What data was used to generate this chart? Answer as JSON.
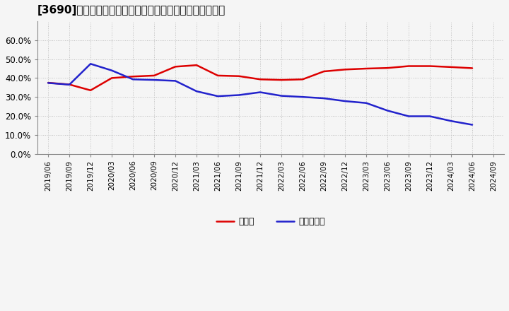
{
  "title": "[3690]　現預金、有利子負債の総資産に対する比率の推移",
  "background_color": "#f5f5f5",
  "plot_background_color": "#f5f5f5",
  "grid_color": "#bbbbbb",
  "ylim": [
    0.0,
    0.7
  ],
  "yticks": [
    0.0,
    0.1,
    0.2,
    0.3,
    0.4,
    0.5,
    0.6
  ],
  "dates": [
    "2019/06",
    "2019/09",
    "2019/12",
    "2020/03",
    "2020/06",
    "2020/09",
    "2020/12",
    "2021/03",
    "2021/06",
    "2021/09",
    "2021/12",
    "2022/03",
    "2022/06",
    "2022/09",
    "2022/12",
    "2023/03",
    "2023/06",
    "2023/09",
    "2023/12",
    "2024/03",
    "2024/06",
    "2024/09"
  ],
  "cash_values": [
    0.375,
    0.366,
    0.335,
    0.4,
    0.408,
    0.413,
    0.46,
    0.468,
    0.413,
    0.41,
    0.393,
    0.39,
    0.393,
    0.435,
    0.445,
    0.45,
    0.453,
    0.463,
    0.463,
    0.458,
    0.452,
    null
  ],
  "debt_values": [
    0.374,
    0.365,
    0.475,
    0.44,
    0.393,
    0.39,
    0.385,
    0.33,
    0.304,
    0.31,
    0.325,
    0.306,
    0.3,
    0.293,
    0.278,
    0.268,
    0.228,
    0.198,
    0.198,
    0.173,
    0.153,
    null
  ],
  "cash_color": "#dd0000",
  "debt_color": "#2222cc",
  "legend_cash": "現預金",
  "legend_debt": "有利子負債",
  "line_width": 1.8,
  "title_fontsize": 11,
  "tick_fontsize": 7.5,
  "legend_fontsize": 9
}
